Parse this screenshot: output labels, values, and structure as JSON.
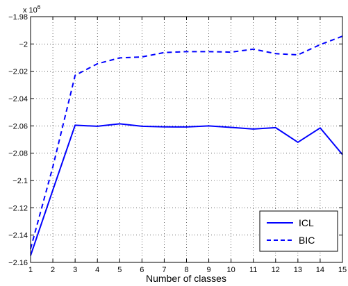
{
  "chart_data": {
    "type": "line",
    "xlabel": "Number of classes",
    "ylabel": "",
    "y_scale_label": "x 10",
    "y_scale_exponent": "6",
    "xlim": [
      1,
      15
    ],
    "ylim": [
      -2.16,
      -1.98
    ],
    "x_ticks": [
      1,
      2,
      3,
      4,
      5,
      6,
      7,
      8,
      9,
      10,
      11,
      12,
      13,
      14,
      15
    ],
    "y_ticks": [
      -2.16,
      -2.14,
      -2.12,
      -2.1,
      -2.08,
      -2.06,
      -2.04,
      -2.02,
      -2,
      -1.98
    ],
    "y_tick_labels": [
      "−2.16",
      "−2.14",
      "−2.12",
      "−2.1",
      "−2.08",
      "−2.06",
      "−2.04",
      "−2.02",
      "−2",
      "−1.98"
    ],
    "grid": true,
    "legend_position": "bottom-right",
    "x": [
      1,
      2,
      3,
      4,
      5,
      6,
      7,
      8,
      9,
      10,
      11,
      12,
      13,
      14,
      15
    ],
    "series": [
      {
        "name": "ICL",
        "style": "solid",
        "color": "#0000ff",
        "values": [
          -2.155,
          -2.107,
          -2.0595,
          -2.0603,
          -2.0585,
          -2.0603,
          -2.0607,
          -2.0608,
          -2.06,
          -2.0611,
          -2.0623,
          -2.0613,
          -2.072,
          -2.0615,
          -2.081
        ]
      },
      {
        "name": "BIC",
        "style": "dashed",
        "color": "#0000ff",
        "values": [
          -2.15,
          -2.09,
          -2.023,
          -2.0145,
          -2.0102,
          -2.0095,
          -2.0063,
          -2.0056,
          -2.0056,
          -2.006,
          -2.0038,
          -2.0071,
          -2.008,
          -2.0005,
          -1.9943
        ]
      }
    ]
  }
}
